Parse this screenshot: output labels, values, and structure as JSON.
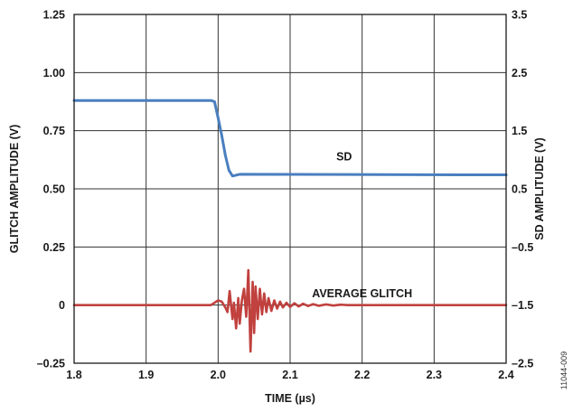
{
  "chart_data": {
    "type": "line",
    "xlabel": "TIME (µs)",
    "ylabel_left": "GLITCH AMPLITUDE (V)",
    "ylabel_right": "SD AMPLITUDE (V)",
    "xlim": [
      1.8,
      2.4
    ],
    "ylim_left": [
      -0.25,
      1.25
    ],
    "ylim_right": [
      -2.5,
      3.5
    ],
    "x_ticks": [
      "1.8",
      "1.9",
      "2.0",
      "2.1",
      "2.2",
      "2.3",
      "2.4"
    ],
    "y_ticks_left": [
      "1.25",
      "1.00",
      "0.75",
      "0.50",
      "0.25",
      "0",
      "–0.25"
    ],
    "y_ticks_right": [
      "3.5",
      "2.5",
      "1.5",
      "0.5",
      "–0.5",
      "–1.5",
      "–2.5"
    ],
    "grid": true,
    "colors": {
      "sd": "#4a7fc0",
      "glitch": "#c0413e",
      "grid": "#333333"
    },
    "series": [
      {
        "name": "SD",
        "axis": "right",
        "x": [
          1.8,
          1.99,
          1.995,
          2.0,
          2.005,
          2.01,
          2.015,
          2.02,
          2.03,
          2.4
        ],
        "y": [
          2.02,
          2.02,
          2.0,
          1.72,
          1.42,
          1.08,
          0.82,
          0.72,
          0.75,
          0.74
        ]
      },
      {
        "name": "AVERAGE GLITCH",
        "axis": "left",
        "x": [
          1.8,
          1.99,
          1.995,
          2.0,
          2.005,
          2.01,
          2.013,
          2.016,
          2.02,
          2.022,
          2.025,
          2.028,
          2.03,
          2.033,
          2.036,
          2.039,
          2.042,
          2.045,
          2.048,
          2.05,
          2.052,
          2.055,
          2.058,
          2.061,
          2.064,
          2.067,
          2.07,
          2.074,
          2.078,
          2.082,
          2.086,
          2.09,
          2.095,
          2.1,
          2.106,
          2.112,
          2.118,
          2.125,
          2.132,
          2.14,
          2.15,
          2.16,
          2.17,
          2.18,
          2.2,
          2.4
        ],
        "y": [
          0.0,
          0.0,
          0.01,
          0.02,
          0.015,
          -0.01,
          -0.03,
          0.06,
          -0.06,
          0.01,
          -0.1,
          0.03,
          -0.08,
          0.02,
          0.07,
          -0.05,
          0.15,
          -0.2,
          0.1,
          -0.12,
          0.08,
          -0.06,
          0.07,
          -0.04,
          0.05,
          -0.03,
          0.03,
          -0.025,
          0.02,
          -0.015,
          0.015,
          -0.01,
          0.01,
          -0.008,
          0.008,
          -0.006,
          0.006,
          -0.004,
          0.004,
          -0.003,
          0.003,
          -0.002,
          0.002,
          0.0,
          0.0,
          0.0
        ]
      }
    ],
    "annotations": [
      {
        "text": "SD",
        "x": 2.175,
        "y_right": 1.05
      },
      {
        "text": "AVERAGE GLITCH",
        "x": 2.2,
        "y_left": 0.05
      }
    ]
  },
  "figure_id": "11044-009"
}
